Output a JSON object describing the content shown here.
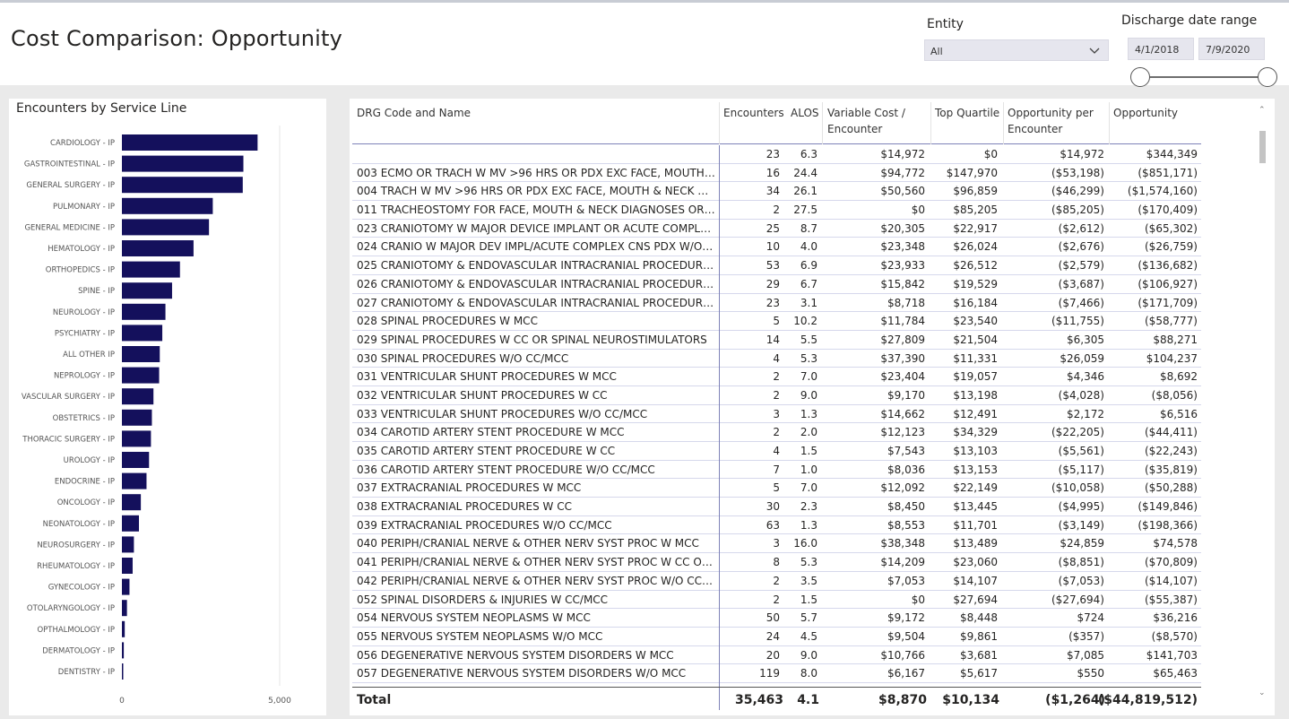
{
  "header": {
    "title": "Cost Comparison: Opportunity",
    "entity_label": "Entity",
    "entity_value": "All",
    "range_label": "Discharge date range",
    "date_start": "4/1/2018",
    "date_end": "7/9/2020"
  },
  "chart_data": {
    "type": "bar",
    "title": "Encounters by Service Line",
    "orientation": "horizontal",
    "categories": [
      "CARDIOLOGY - IP",
      "GASTROINTESTINAL - IP",
      "GENERAL SURGERY - IP",
      "PULMONARY - IP",
      "GENERAL MEDICINE - IP",
      "HEMATOLOGY - IP",
      "ORTHOPEDICS - IP",
      "SPINE - IP",
      "NEUROLOGY - IP",
      "PSYCHIATRY - IP",
      "ALL OTHER IP",
      "NEPROLOGY - IP",
      "VASCULAR SURGERY - IP",
      "OBSTETRICS - IP",
      "THORACIC SURGERY - IP",
      "UROLOGY - IP",
      "ENDOCRINE - IP",
      "ONCOLOGY - IP",
      "NEONATOLOGY - IP",
      "NEUROSURGERY - IP",
      "RHEUMATOLOGY - IP",
      "GYNECOLOGY - IP",
      "OTOLARYNGOLOGY - IP",
      "OPTHALMOLOGY - IP",
      "DERMATOLOGY - IP",
      "DENTISTRY - IP"
    ],
    "values": [
      4300,
      3850,
      3830,
      2880,
      2760,
      2270,
      1840,
      1590,
      1380,
      1280,
      1200,
      1180,
      1000,
      950,
      920,
      860,
      780,
      600,
      540,
      380,
      340,
      240,
      160,
      90,
      60,
      30
    ],
    "xlim": [
      0,
      5000
    ],
    "xticks": [
      "0",
      "5,000"
    ],
    "bar_color": "#14105c"
  },
  "table": {
    "columns": [
      "DRG Code and Name",
      "Encounters",
      "ALOS",
      "Variable Cost / Encounter",
      "Top Quartile",
      "Opportunity per Encounter",
      "Opportunity"
    ],
    "rows": [
      [
        "",
        "23",
        "6.3",
        "$14,972",
        "$0",
        "$14,972",
        "$344,349"
      ],
      [
        "003 ECMO OR TRACH W MV >96 HRS OR PDX EXC FACE, MOUTH &...",
        "16",
        "24.4",
        "$94,772",
        "$147,970",
        "($53,198)",
        "($851,171)"
      ],
      [
        "004 TRACH W MV >96 HRS OR PDX EXC FACE, MOUTH & NECK W/...",
        "34",
        "26.1",
        "$50,560",
        "$96,859",
        "($46,299)",
        "($1,574,160)"
      ],
      [
        "011 TRACHEOSTOMY FOR FACE, MOUTH & NECK DIAGNOSES OR L...",
        "2",
        "27.5",
        "$0",
        "$85,205",
        "($85,205)",
        "($170,409)"
      ],
      [
        "023 CRANIOTOMY W MAJOR DEVICE IMPLANT OR ACUTE COMPLE...",
        "25",
        "8.7",
        "$20,305",
        "$22,917",
        "($2,612)",
        "($65,302)"
      ],
      [
        "024 CRANIO W MAJOR DEV IMPL/ACUTE COMPLEX CNS PDX W/O ...",
        "10",
        "4.0",
        "$23,348",
        "$26,024",
        "($2,676)",
        "($26,759)"
      ],
      [
        "025 CRANIOTOMY & ENDOVASCULAR INTRACRANIAL PROCEDURE...",
        "53",
        "6.9",
        "$23,933",
        "$26,512",
        "($2,579)",
        "($136,682)"
      ],
      [
        "026 CRANIOTOMY & ENDOVASCULAR INTRACRANIAL PROCEDURE...",
        "29",
        "6.7",
        "$15,842",
        "$19,529",
        "($3,687)",
        "($106,927)"
      ],
      [
        "027 CRANIOTOMY & ENDOVASCULAR INTRACRANIAL PROCEDURE...",
        "23",
        "3.1",
        "$8,718",
        "$16,184",
        "($7,466)",
        "($171,709)"
      ],
      [
        "028 SPINAL PROCEDURES W MCC",
        "5",
        "10.2",
        "$11,784",
        "$23,540",
        "($11,755)",
        "($58,777)"
      ],
      [
        "029 SPINAL PROCEDURES W CC OR SPINAL NEUROSTIMULATORS",
        "14",
        "5.5",
        "$27,809",
        "$21,504",
        "$6,305",
        "$88,271"
      ],
      [
        "030 SPINAL PROCEDURES W/O CC/MCC",
        "4",
        "5.3",
        "$37,390",
        "$11,331",
        "$26,059",
        "$104,237"
      ],
      [
        "031 VENTRICULAR SHUNT PROCEDURES W MCC",
        "2",
        "7.0",
        "$23,404",
        "$19,057",
        "$4,346",
        "$8,692"
      ],
      [
        "032 VENTRICULAR SHUNT PROCEDURES W CC",
        "2",
        "9.0",
        "$9,170",
        "$13,198",
        "($4,028)",
        "($8,056)"
      ],
      [
        "033 VENTRICULAR SHUNT PROCEDURES W/O CC/MCC",
        "3",
        "1.3",
        "$14,662",
        "$12,491",
        "$2,172",
        "$6,516"
      ],
      [
        "034 CAROTID ARTERY STENT PROCEDURE W MCC",
        "2",
        "2.0",
        "$12,123",
        "$34,329",
        "($22,205)",
        "($44,411)"
      ],
      [
        "035 CAROTID ARTERY STENT PROCEDURE W CC",
        "4",
        "1.5",
        "$7,543",
        "$13,103",
        "($5,561)",
        "($22,243)"
      ],
      [
        "036 CAROTID ARTERY STENT PROCEDURE W/O CC/MCC",
        "7",
        "1.0",
        "$8,036",
        "$13,153",
        "($5,117)",
        "($35,819)"
      ],
      [
        "037 EXTRACRANIAL PROCEDURES W MCC",
        "5",
        "7.0",
        "$12,092",
        "$22,149",
        "($10,058)",
        "($50,288)"
      ],
      [
        "038 EXTRACRANIAL PROCEDURES W CC",
        "30",
        "2.3",
        "$8,450",
        "$13,445",
        "($4,995)",
        "($149,846)"
      ],
      [
        "039 EXTRACRANIAL PROCEDURES W/O CC/MCC",
        "63",
        "1.3",
        "$8,553",
        "$11,701",
        "($3,149)",
        "($198,366)"
      ],
      [
        "040 PERIPH/CRANIAL NERVE & OTHER NERV SYST PROC W MCC",
        "3",
        "16.0",
        "$38,348",
        "$13,489",
        "$24,859",
        "$74,578"
      ],
      [
        "041 PERIPH/CRANIAL NERVE & OTHER NERV SYST PROC W CC OR ...",
        "8",
        "5.3",
        "$14,209",
        "$23,060",
        "($8,851)",
        "($70,809)"
      ],
      [
        "042 PERIPH/CRANIAL NERVE & OTHER NERV SYST PROC W/O CC/...",
        "2",
        "3.5",
        "$7,053",
        "$14,107",
        "($7,053)",
        "($14,107)"
      ],
      [
        "052 SPINAL DISORDERS & INJURIES W CC/MCC",
        "2",
        "1.5",
        "$0",
        "$27,694",
        "($27,694)",
        "($55,387)"
      ],
      [
        "054 NERVOUS SYSTEM NEOPLASMS W MCC",
        "50",
        "5.7",
        "$9,172",
        "$8,448",
        "$724",
        "$36,216"
      ],
      [
        "055 NERVOUS SYSTEM NEOPLASMS W/O MCC",
        "24",
        "4.5",
        "$9,504",
        "$9,861",
        "($357)",
        "($8,570)"
      ],
      [
        "056 DEGENERATIVE NERVOUS SYSTEM DISORDERS W MCC",
        "20",
        "9.0",
        "$10,766",
        "$3,681",
        "$7,085",
        "$141,703"
      ],
      [
        "057 DEGENERATIVE NERVOUS SYSTEM DISORDERS W/O MCC",
        "119",
        "8.0",
        "$6,167",
        "$5,617",
        "$550",
        "$65,463"
      ]
    ],
    "total": {
      "label": "Total",
      "encounters": "35,463",
      "alos": "4.1",
      "variable_cost": "$8,870",
      "top_quartile": "$10,134",
      "opp_per_enc": "($1,264)",
      "opportunity": "($44,819,512)"
    }
  }
}
